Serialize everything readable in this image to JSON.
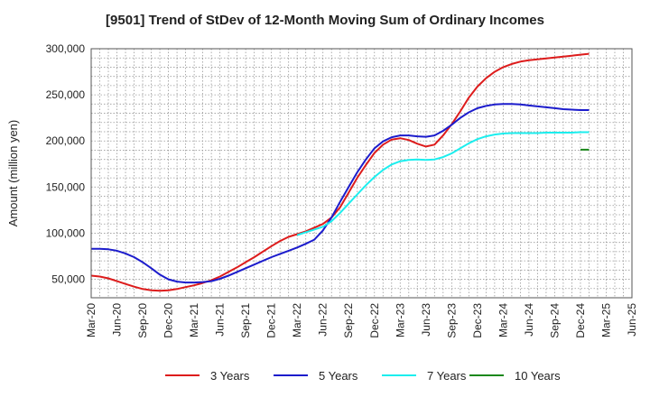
{
  "chart_data": {
    "type": "line",
    "title": "[9501]  Trend of StDev of 12-Month Moving Sum of Ordinary Incomes",
    "xlabel": "",
    "ylabel": "Amount (million yen)",
    "ylim": [
      30000,
      300000
    ],
    "yticks": [
      50000,
      100000,
      150000,
      200000,
      250000,
      300000
    ],
    "ytick_labels": [
      "50,000",
      "100,000",
      "150,000",
      "200,000",
      "250,000",
      "300,000"
    ],
    "x_start": "Mar-20",
    "x_end": "Jun-25",
    "xtick_labels": [
      "Mar-20",
      "Jun-20",
      "Sep-20",
      "Dec-20",
      "Mar-21",
      "Jun-21",
      "Sep-21",
      "Dec-21",
      "Mar-22",
      "Jun-22",
      "Sep-22",
      "Dec-22",
      "Mar-23",
      "Jun-23",
      "Sep-23",
      "Dec-23",
      "Mar-24",
      "Jun-24",
      "Sep-24",
      "Dec-24",
      "Mar-25",
      "Jun-25"
    ],
    "grid": true,
    "series": [
      {
        "name": "3 Years",
        "color": "#dd1c1c",
        "points": [
          [
            0,
            54000
          ],
          [
            1,
            53000
          ],
          [
            2,
            51000
          ],
          [
            3,
            48000
          ],
          [
            4,
            45000
          ],
          [
            5,
            42000
          ],
          [
            6,
            39500
          ],
          [
            7,
            38000
          ],
          [
            8,
            37500
          ],
          [
            9,
            38000
          ],
          [
            10,
            39500
          ],
          [
            11,
            41500
          ],
          [
            12,
            43500
          ],
          [
            13,
            46000
          ],
          [
            14,
            49000
          ],
          [
            15,
            53000
          ],
          [
            16,
            58000
          ],
          [
            17,
            63000
          ],
          [
            18,
            68500
          ],
          [
            19,
            74000
          ],
          [
            20,
            80000
          ],
          [
            21,
            86000
          ],
          [
            22,
            91500
          ],
          [
            23,
            96000
          ],
          [
            24,
            99000
          ],
          [
            25,
            102000
          ],
          [
            26,
            106000
          ],
          [
            27,
            110000
          ],
          [
            28,
            117000
          ],
          [
            29,
            128000
          ],
          [
            30,
            144000
          ],
          [
            31,
            160000
          ],
          [
            32,
            174000
          ],
          [
            33,
            187000
          ],
          [
            34,
            196000
          ],
          [
            35,
            201500
          ],
          [
            36,
            203000
          ],
          [
            37,
            201000
          ],
          [
            38,
            197000
          ],
          [
            39,
            194000
          ],
          [
            40,
            196000
          ],
          [
            41,
            206000
          ],
          [
            42,
            218000
          ],
          [
            43,
            232000
          ],
          [
            44,
            247000
          ],
          [
            45,
            259000
          ],
          [
            46,
            268000
          ],
          [
            47,
            275000
          ],
          [
            48,
            280000
          ],
          [
            49,
            283500
          ],
          [
            50,
            286000
          ],
          [
            51,
            287500
          ],
          [
            52,
            288500
          ],
          [
            53,
            289500
          ],
          [
            54,
            290500
          ],
          [
            55,
            291500
          ],
          [
            56,
            292500
          ],
          [
            57,
            293500
          ],
          [
            58,
            294500
          ]
        ]
      },
      {
        "name": "5 Years",
        "color": "#1c1ccc",
        "points": [
          [
            0,
            83000
          ],
          [
            1,
            83000
          ],
          [
            2,
            82500
          ],
          [
            3,
            81000
          ],
          [
            4,
            78000
          ],
          [
            5,
            74000
          ],
          [
            6,
            68500
          ],
          [
            7,
            62000
          ],
          [
            8,
            55000
          ],
          [
            9,
            50000
          ],
          [
            10,
            47500
          ],
          [
            11,
            46500
          ],
          [
            12,
            46500
          ],
          [
            13,
            47000
          ],
          [
            14,
            48000
          ],
          [
            15,
            50500
          ],
          [
            16,
            54000
          ],
          [
            17,
            58000
          ],
          [
            18,
            62000
          ],
          [
            19,
            66000
          ],
          [
            20,
            70000
          ],
          [
            21,
            74000
          ],
          [
            22,
            77500
          ],
          [
            23,
            81000
          ],
          [
            24,
            84500
          ],
          [
            25,
            88500
          ],
          [
            26,
            93000
          ],
          [
            27,
            103000
          ],
          [
            28,
            117000
          ],
          [
            29,
            134000
          ],
          [
            30,
            150000
          ],
          [
            31,
            166000
          ],
          [
            32,
            180000
          ],
          [
            33,
            192000
          ],
          [
            34,
            199500
          ],
          [
            35,
            204000
          ],
          [
            36,
            206000
          ],
          [
            37,
            206000
          ],
          [
            38,
            205000
          ],
          [
            39,
            204500
          ],
          [
            40,
            206000
          ],
          [
            41,
            211000
          ],
          [
            42,
            217500
          ],
          [
            43,
            225000
          ],
          [
            44,
            231000
          ],
          [
            45,
            235500
          ],
          [
            46,
            238000
          ],
          [
            47,
            239500
          ],
          [
            48,
            240000
          ],
          [
            49,
            240000
          ],
          [
            50,
            239500
          ],
          [
            51,
            238500
          ],
          [
            52,
            237500
          ],
          [
            53,
            236500
          ],
          [
            54,
            235500
          ],
          [
            55,
            234500
          ],
          [
            56,
            234000
          ],
          [
            57,
            233500
          ],
          [
            58,
            233500
          ]
        ]
      },
      {
        "name": "7 Years",
        "color": "#1ceeee",
        "points": [
          [
            24,
            98000
          ],
          [
            25,
            101000
          ],
          [
            26,
            104000
          ],
          [
            27,
            107000
          ],
          [
            28,
            113000
          ],
          [
            29,
            122000
          ],
          [
            30,
            132000
          ],
          [
            31,
            142000
          ],
          [
            32,
            152000
          ],
          [
            33,
            161000
          ],
          [
            34,
            168500
          ],
          [
            35,
            174500
          ],
          [
            36,
            178000
          ],
          [
            37,
            179500
          ],
          [
            38,
            180000
          ],
          [
            39,
            179500
          ],
          [
            40,
            180000
          ],
          [
            41,
            182500
          ],
          [
            42,
            186500
          ],
          [
            43,
            192000
          ],
          [
            44,
            197500
          ],
          [
            45,
            202000
          ],
          [
            46,
            205000
          ],
          [
            47,
            207000
          ],
          [
            48,
            208000
          ],
          [
            49,
            208500
          ],
          [
            50,
            208500
          ],
          [
            51,
            208500
          ],
          [
            52,
            208500
          ],
          [
            53,
            209000
          ],
          [
            54,
            209000
          ],
          [
            55,
            209000
          ],
          [
            56,
            209000
          ],
          [
            57,
            209500
          ],
          [
            58,
            209500
          ]
        ]
      },
      {
        "name": "10 Years",
        "color": "#1c881c",
        "points": [
          [
            57,
            190500
          ],
          [
            58,
            190500
          ]
        ]
      }
    ]
  }
}
